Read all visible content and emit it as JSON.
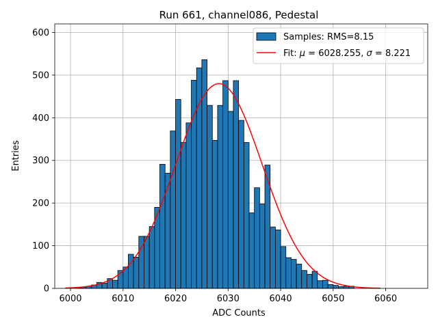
{
  "chart_data": {
    "type": "bar",
    "title": "Run 661, channel086, Pedestal",
    "xlabel": "ADC Counts",
    "ylabel": "Entries",
    "xlim": [
      5997,
      6068
    ],
    "ylim": [
      0,
      620
    ],
    "xticks": [
      6000,
      6010,
      6020,
      6030,
      6040,
      6050,
      6060
    ],
    "yticks": [
      0,
      100,
      200,
      300,
      400,
      500,
      600
    ],
    "grid": true,
    "legend_position": "top-right",
    "colors": {
      "bar_fill": "#1f77b4",
      "bar_edge": "#000000",
      "fit_line": "#ff0000",
      "grid": "#b0b0b0"
    },
    "histogram": {
      "name": "Samples: RMS=8.15",
      "bin_edges_start": 6001,
      "bin_width": 1,
      "counts": [
        1,
        3,
        5,
        8,
        14,
        12,
        23,
        19,
        42,
        50,
        80,
        73,
        122,
        122,
        145,
        190,
        291,
        270,
        369,
        443,
        342,
        388,
        488,
        517,
        536,
        429,
        347,
        429,
        487,
        415,
        487,
        394,
        342,
        177,
        236,
        198,
        289,
        144,
        137,
        98,
        72,
        68,
        57,
        42,
        33,
        40,
        18,
        19,
        9,
        7,
        4,
        5,
        5
      ]
    },
    "fit": {
      "label_prefix": "Fit: ",
      "mu_symbol": "μ",
      "mu_value": "6028.255",
      "sigma_symbol": "σ",
      "sigma_value": "8.221",
      "mu": 6028.255,
      "sigma": 8.221,
      "amplitude": 480,
      "x_range": [
        5999,
        6059
      ]
    }
  }
}
